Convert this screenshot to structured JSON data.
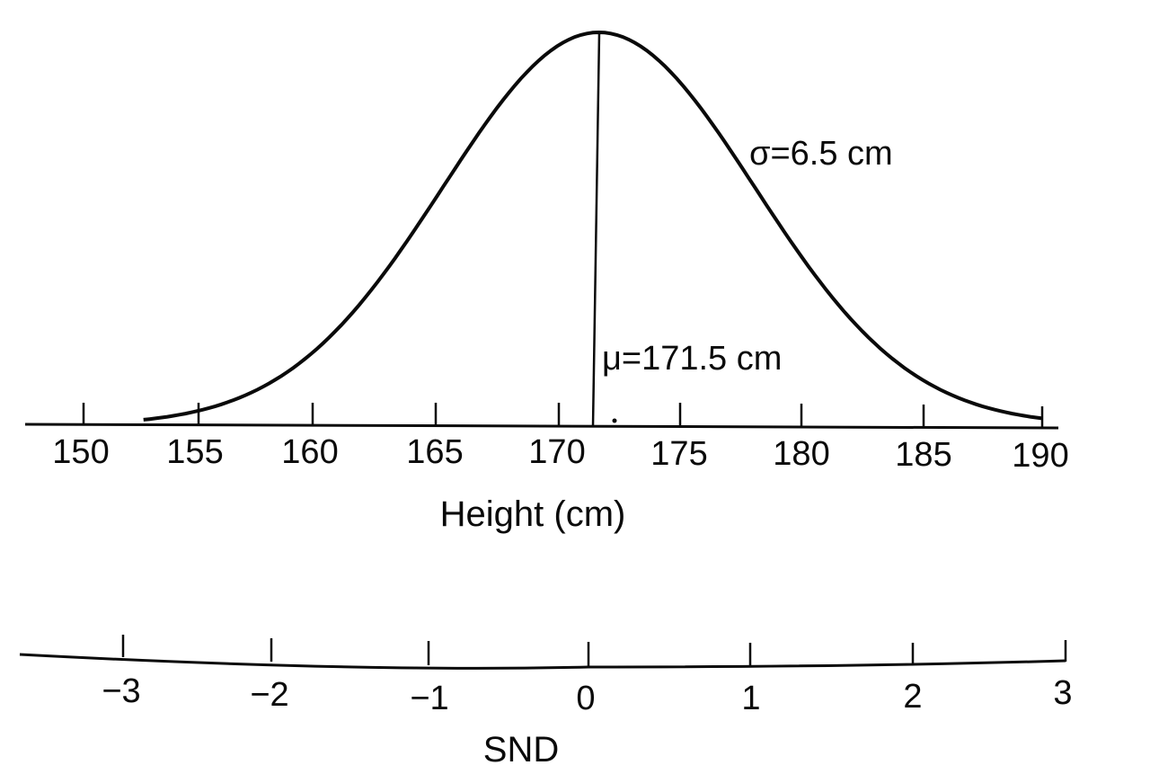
{
  "chart_data": {
    "type": "line",
    "title": "",
    "description": "Normal distribution of heights with corresponding standard normal deviate (SND) scale",
    "xlabel": "Height (cm)",
    "ylabel": "",
    "xlim": [
      150,
      190
    ],
    "x_ticks": [
      150,
      155,
      160,
      165,
      170,
      175,
      180,
      185,
      190
    ],
    "mean": 171.5,
    "sd": 6.5,
    "curve": "normal density, mean 171.5, sd 6.5, plotted from ~152.5 to ~190",
    "secondary_axis": {
      "label": "SND",
      "ticks": [
        -3,
        -2,
        -1,
        0,
        1,
        2,
        3
      ],
      "tick_labels": [
        "−3",
        "−2",
        "−1",
        "0",
        "1",
        "2",
        "3"
      ]
    },
    "annotations": [
      {
        "text": "σ=6.5 cm",
        "position": "right flank of curve"
      },
      {
        "text": "μ=171.5 cm",
        "position": "beside mean line near baseline"
      }
    ],
    "grid": false,
    "legend": null
  },
  "axis_height": {
    "label": "Height (cm)",
    "ticks": [
      "150",
      "155",
      "160",
      "165",
      "170",
      "175",
      "180",
      "185",
      "190"
    ]
  },
  "axis_snd": {
    "label": "SND",
    "ticks": [
      "−3",
      "−2",
      "−1",
      "0",
      "1",
      "2",
      "3"
    ]
  },
  "annotations": {
    "sigma": "σ=6.5 cm",
    "mu": "μ=171.5 cm"
  }
}
